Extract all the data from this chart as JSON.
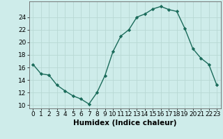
{
  "x": [
    0,
    1,
    2,
    3,
    4,
    5,
    6,
    7,
    8,
    9,
    10,
    11,
    12,
    13,
    14,
    15,
    16,
    17,
    18,
    19,
    20,
    21,
    22,
    23
  ],
  "y": [
    16.5,
    15.0,
    14.8,
    13.2,
    12.3,
    11.5,
    11.0,
    10.2,
    12.0,
    14.7,
    18.5,
    21.0,
    22.0,
    24.0,
    24.5,
    25.3,
    25.7,
    25.2,
    24.9,
    22.2,
    19.0,
    17.5,
    16.5,
    13.2
  ],
  "line_color": "#1a6b5a",
  "marker": "D",
  "marker_size": 2.2,
  "bg_color": "#ceecea",
  "grid_color": "#b8d8d4",
  "xlabel": "Humidex (Indice chaleur)",
  "xlim": [
    -0.5,
    23.5
  ],
  "ylim": [
    9.5,
    26.5
  ],
  "yticks": [
    10,
    12,
    14,
    16,
    18,
    20,
    22,
    24
  ],
  "xticks": [
    0,
    1,
    2,
    3,
    4,
    5,
    6,
    7,
    8,
    9,
    10,
    11,
    12,
    13,
    14,
    15,
    16,
    17,
    18,
    19,
    20,
    21,
    22,
    23
  ],
  "xlabel_fontsize": 7.5,
  "tick_fontsize": 6.5
}
